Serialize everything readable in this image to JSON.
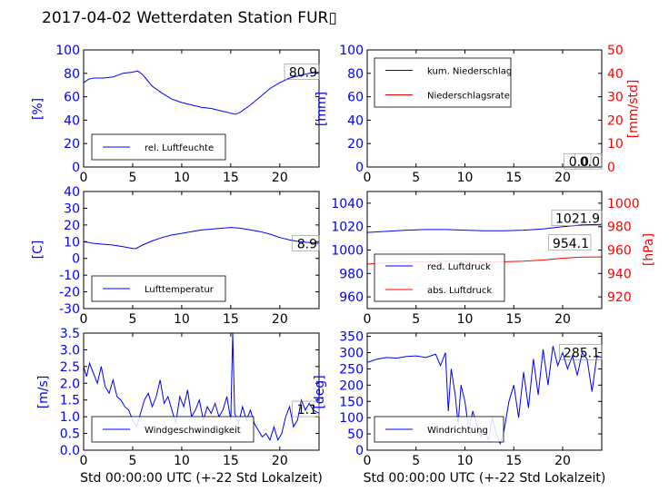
{
  "figure": {
    "title": "2017-04-02 Wetterdaten Station FUR▯"
  },
  "colors": {
    "axis": "#000000",
    "left_axis_text": "#0000ff",
    "right_axis_text": "#ff0000",
    "series_blue": "#0000ff",
    "series_red": "#ff0000"
  },
  "chart_data": [
    {
      "id": "humidity",
      "type": "line",
      "xlim": [
        0,
        24
      ],
      "ylim": [
        0,
        100
      ],
      "yticks": [
        0,
        20,
        40,
        60,
        80,
        100
      ],
      "xticks": [
        0,
        5,
        10,
        15,
        20
      ],
      "ylabel": "[%]",
      "xlabel": "",
      "legend_position": "lower-left",
      "series": [
        {
          "name": "rel. Luftfeuchte",
          "color": "#0000ff",
          "x": [
            0,
            0.5,
            1,
            2,
            3,
            4,
            5,
            5.5,
            6,
            6.5,
            7,
            8,
            9,
            10,
            11,
            12,
            13,
            14,
            15,
            15.5,
            16,
            17,
            18,
            19,
            20,
            21,
            22,
            23,
            24
          ],
          "y": [
            72,
            75,
            76,
            76,
            77,
            80,
            81,
            82,
            79,
            74,
            69,
            63,
            58,
            55,
            53,
            51,
            50,
            48,
            46,
            45,
            47,
            53,
            60,
            67,
            72,
            76,
            78,
            80,
            81
          ]
        }
      ],
      "end_labels": [
        {
          "text": "80.9",
          "y": 80.9
        }
      ]
    },
    {
      "id": "precipitation",
      "type": "line",
      "xlim": [
        0,
        24
      ],
      "ylim": [
        0,
        100
      ],
      "yticks": [
        0,
        20,
        40,
        60,
        80,
        100
      ],
      "xticks": [
        0,
        5,
        10,
        15,
        20
      ],
      "ylabel": "[mm]",
      "ylim_right": [
        0,
        50
      ],
      "yticks_right": [
        0,
        10,
        20,
        30,
        40,
        50
      ],
      "ylabel_right": "[mm/std]",
      "xlabel": "",
      "legend_position": "upper-left",
      "series": [
        {
          "name": "kum. Niederschlag",
          "color": "#0000ff",
          "axis": "left",
          "x": [
            0,
            24
          ],
          "y": [
            0,
            0
          ]
        },
        {
          "name": "Niederschlagsrate",
          "color": "#ff0000",
          "axis": "right",
          "x": [
            0,
            24
          ],
          "y": [
            0,
            0
          ]
        }
      ],
      "end_labels": [
        {
          "text": "0.0",
          "y": 4.5
        },
        {
          "text": "0.0",
          "y": 4.5
        }
      ]
    },
    {
      "id": "temperature",
      "type": "line",
      "xlim": [
        0,
        24
      ],
      "ylim": [
        -30,
        40
      ],
      "yticks": [
        -30,
        -20,
        -10,
        0,
        10,
        20,
        30,
        40
      ],
      "xticks": [
        0,
        5,
        10,
        15,
        20
      ],
      "ylabel": "[C]",
      "xlabel": "",
      "legend_position": "lower-left",
      "series": [
        {
          "name": "Lufttemperatur",
          "color": "#0000ff",
          "x": [
            0,
            1,
            2,
            3,
            4,
            5,
            5.3,
            6,
            7,
            8,
            9,
            10,
            11,
            12,
            13,
            14,
            15,
            16,
            17,
            18,
            19,
            20,
            21,
            22,
            23,
            24
          ],
          "y": [
            10,
            9,
            8.5,
            8,
            7,
            6,
            5.8,
            8,
            10.5,
            12.5,
            14,
            15,
            16,
            17,
            17.5,
            18,
            18.5,
            18,
            17,
            16,
            14.5,
            12.5,
            11,
            10,
            9.5,
            9
          ]
        }
      ],
      "end_labels": [
        {
          "text": "8.9",
          "y": 8.9
        }
      ]
    },
    {
      "id": "pressure",
      "type": "line",
      "xlim": [
        0,
        24
      ],
      "ylim": [
        950,
        1050
      ],
      "yticks": [
        960,
        980,
        1000,
        1020,
        1040
      ],
      "xticks": [
        0,
        5,
        10,
        15,
        20
      ],
      "ylim_right": [
        910,
        1010
      ],
      "yticks_right": [
        920,
        940,
        960,
        980,
        1000
      ],
      "ylabel_right": "[hPa]",
      "xlabel": "",
      "legend_position": "lower-left",
      "series": [
        {
          "name": "red. Luftdruck",
          "color": "#0000ff",
          "axis": "left",
          "x": [
            0,
            2,
            4,
            6,
            8,
            10,
            12,
            14,
            16,
            18,
            20,
            22,
            24
          ],
          "y": [
            1015,
            1016,
            1017,
            1017.5,
            1017.5,
            1017,
            1016.5,
            1016.5,
            1017,
            1018,
            1020,
            1021.5,
            1021.9
          ]
        },
        {
          "name": "abs. Luftdruck",
          "color": "#ff0000",
          "axis": "right",
          "x": [
            0,
            2,
            4,
            6,
            8,
            10,
            12,
            14,
            16,
            18,
            20,
            22,
            24
          ],
          "y": [
            948,
            949,
            949.5,
            950,
            950.5,
            950.5,
            950,
            950,
            950.5,
            951.5,
            953,
            954,
            954.1
          ]
        }
      ],
      "end_labels": [
        {
          "text": "1021.9",
          "y": 1027
        },
        {
          "text": "954.1",
          "y": 1006
        }
      ]
    },
    {
      "id": "wind-speed",
      "type": "line",
      "xlim": [
        0,
        24
      ],
      "ylim": [
        0,
        3.5
      ],
      "yticks": [
        0.0,
        0.5,
        1.0,
        1.5,
        2.0,
        2.5,
        3.0,
        3.5
      ],
      "xticks": [
        0,
        5,
        10,
        15,
        20
      ],
      "ylabel": "[m/s]",
      "xlabel": "Std 00:00:00 UTC (+-22 Std Lokalzeit)",
      "legend_position": "lower-left",
      "series": [
        {
          "name": "Windgeschwindigkeit",
          "color": "#0000ff",
          "x": [
            0,
            0.3,
            0.6,
            1,
            1.4,
            1.8,
            2.2,
            2.6,
            3,
            3.4,
            3.8,
            4.2,
            4.6,
            5,
            5.4,
            5.8,
            6.2,
            6.6,
            7,
            7.4,
            7.8,
            8.2,
            8.6,
            9,
            9.4,
            9.8,
            10.2,
            10.6,
            11,
            11.4,
            11.8,
            12.2,
            12.6,
            13,
            13.4,
            13.8,
            14.2,
            14.6,
            15,
            15.2,
            15.4,
            15.8,
            16.2,
            16.6,
            17,
            17.4,
            17.8,
            18.2,
            18.6,
            19,
            19.4,
            19.8,
            20.2,
            20.6,
            21,
            21.4,
            21.8,
            22.2,
            22.6,
            23,
            23.4,
            24
          ],
          "y": [
            2.5,
            2.2,
            2.6,
            2.3,
            2.0,
            2.5,
            1.9,
            1.7,
            2.1,
            1.6,
            1.5,
            1.3,
            1.2,
            0.9,
            0.7,
            1.1,
            1.5,
            1.7,
            1.3,
            1.6,
            2.1,
            1.4,
            1.6,
            1.2,
            0.8,
            1.6,
            1.3,
            1.8,
            1.0,
            1.2,
            1.5,
            0.9,
            1.3,
            1.1,
            1.4,
            1.0,
            1.2,
            1.6,
            0.9,
            3.5,
            1.1,
            0.8,
            1.3,
            0.9,
            1.2,
            0.8,
            0.6,
            0.4,
            0.5,
            0.3,
            0.7,
            0.3,
            0.5,
            1.0,
            1.3,
            0.7,
            0.9,
            1.5,
            1.2,
            1.4,
            1.2,
            1.1
          ]
        }
      ],
      "end_labels": [
        {
          "text": "1.1",
          "y": 1.22
        }
      ]
    },
    {
      "id": "wind-direction",
      "type": "line",
      "xlim": [
        0,
        24
      ],
      "ylim": [
        0,
        360
      ],
      "yticks": [
        0,
        50,
        100,
        150,
        200,
        250,
        300,
        350
      ],
      "xticks": [
        0,
        5,
        10,
        15,
        20
      ],
      "ylabel": "[deg]",
      "xlabel": "Std 00:00:00 UTC (+-22 Std Lokalzeit)",
      "legend_position": "lower-left",
      "series": [
        {
          "name": "Windrichtung",
          "color": "#0000ff",
          "x": [
            0,
            0.5,
            1,
            2,
            3,
            4,
            5,
            6,
            7,
            7.5,
            8,
            8.3,
            8.6,
            9,
            9.3,
            9.6,
            10,
            10.4,
            10.8,
            11.2,
            11.6,
            12,
            12.4,
            12.8,
            13.2,
            13.6,
            14,
            14.5,
            15,
            15.5,
            16,
            16.5,
            17,
            17.5,
            18,
            18.5,
            19,
            19.5,
            20,
            20.5,
            21,
            21.5,
            22,
            22.5,
            23,
            23.5,
            24
          ],
          "y": [
            270,
            275,
            280,
            285,
            283,
            288,
            290,
            285,
            295,
            260,
            300,
            120,
            250,
            170,
            80,
            200,
            150,
            60,
            120,
            80,
            40,
            70,
            30,
            100,
            50,
            20,
            60,
            150,
            200,
            100,
            240,
            130,
            280,
            170,
            310,
            200,
            320,
            260,
            300,
            250,
            290,
            230,
            300,
            280,
            180,
            290,
            285
          ]
        }
      ],
      "end_labels": [
        {
          "text": "285.1",
          "y": 300
        }
      ]
    }
  ]
}
